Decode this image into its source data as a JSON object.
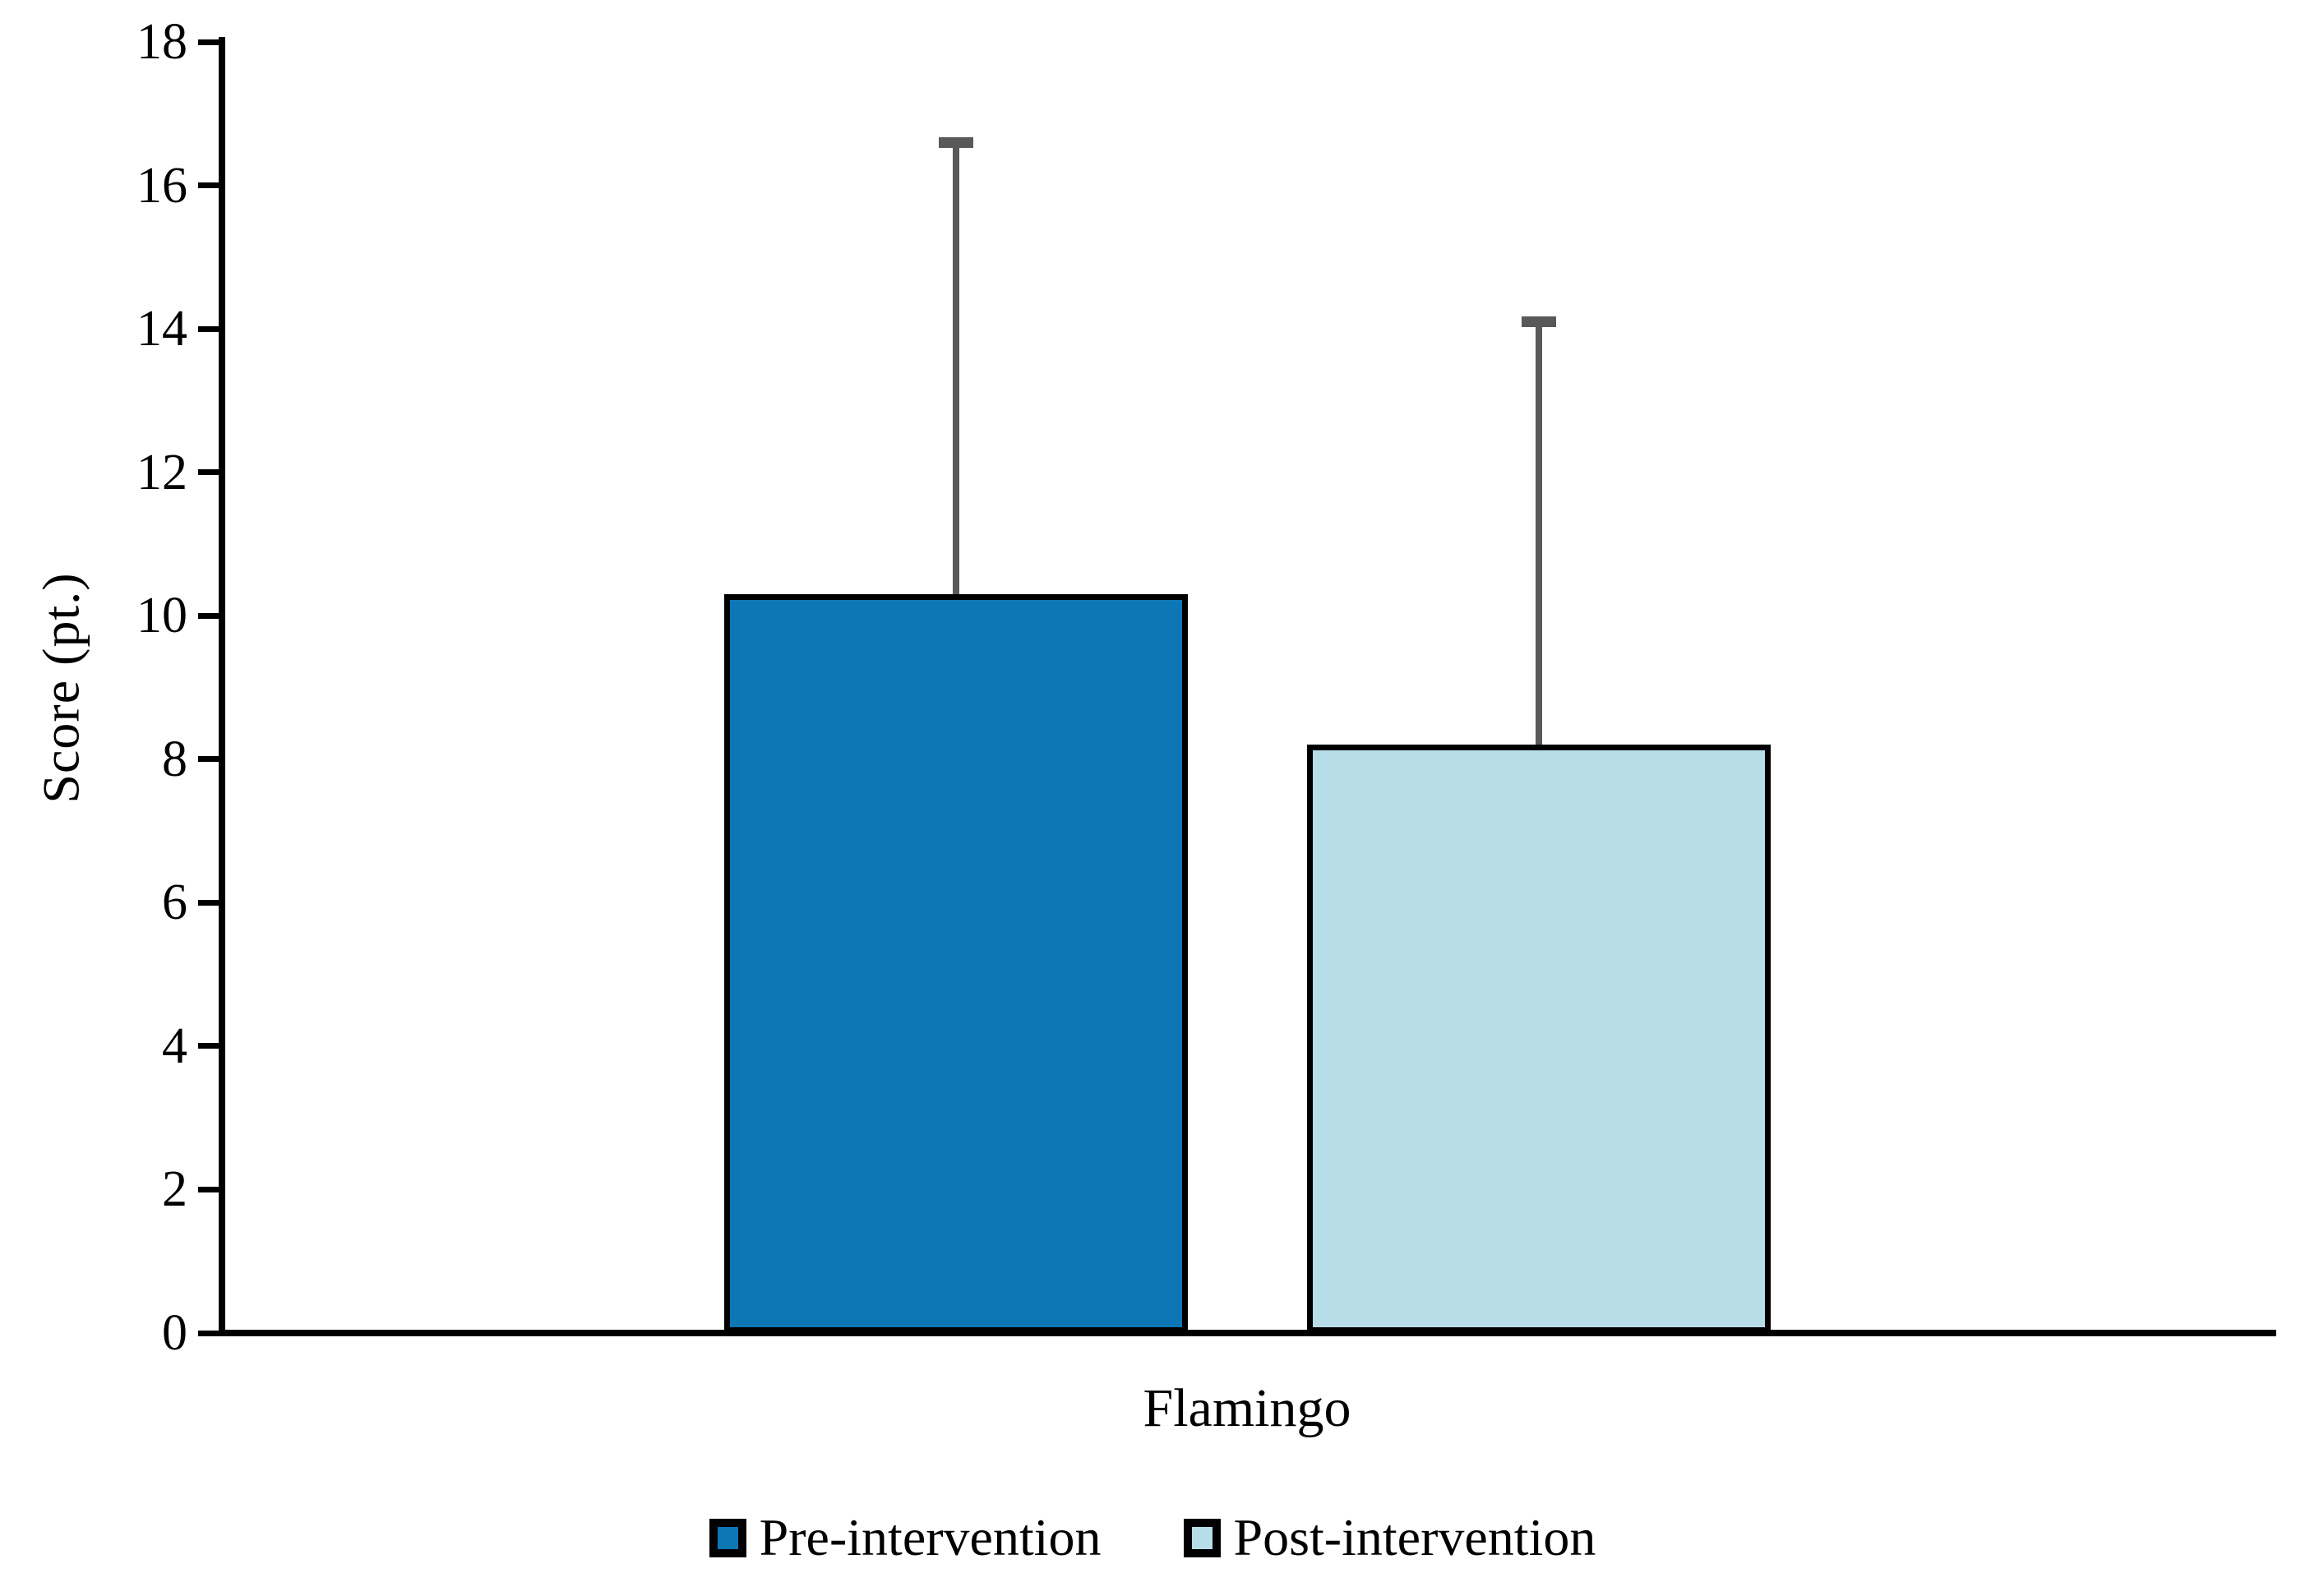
{
  "figure": {
    "background": "#ffffff",
    "text_color": "#000000"
  },
  "chart_data": {
    "type": "bar",
    "title": "",
    "categories": [
      "Flamingo"
    ],
    "series": [
      {
        "name": "Pre-intervention",
        "values": [
          10.3
        ],
        "error_plus": [
          6.3
        ],
        "fill": "#0d76b5"
      },
      {
        "name": "Post-intervention",
        "values": [
          8.2
        ],
        "error_plus": [
          5.9
        ],
        "fill": "#b7dde8"
      }
    ],
    "xlabel": "",
    "ylabel": "Score (pt.)",
    "ylim": [
      0,
      18
    ],
    "yticks": [
      0,
      2,
      4,
      6,
      8,
      10,
      12,
      14,
      16,
      18
    ],
    "grid": false,
    "legend_position": "bottom",
    "colors": {
      "error_bar": "#595959",
      "bar_border": "#000000",
      "axis": "#000000"
    }
  }
}
